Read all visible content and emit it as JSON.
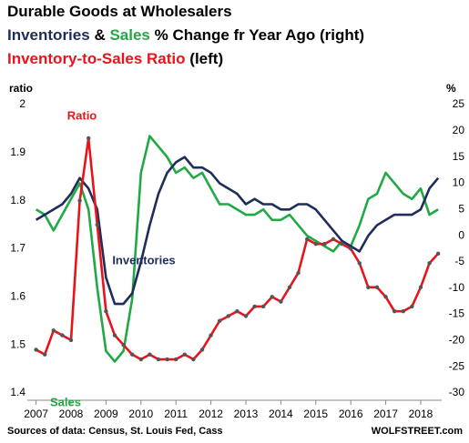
{
  "chart_data": {
    "type": "line",
    "title_lines": [
      [
        {
          "text": "Durable Goods at Wholesalers",
          "color": "#000000"
        }
      ],
      [
        {
          "text": "Inventories",
          "color": "#1f2d5a"
        },
        {
          "text": "&",
          "color": "#000000"
        },
        {
          "text": "Sales",
          "color": "#22a845"
        },
        {
          "text": "% Change fr Year Ago (right)",
          "color": "#000000"
        }
      ],
      [
        {
          "text": "Inventory-to-Sales  Ratio",
          "color": "#e8141b"
        },
        {
          "text": "(left)",
          "color": "#000000"
        }
      ]
    ],
    "ylabel": "ratio",
    "y2label": "%",
    "x": [
      2007,
      2007.25,
      2007.5,
      2007.75,
      2008,
      2008.25,
      2008.5,
      2008.75,
      2009,
      2009.25,
      2009.5,
      2009.75,
      2010,
      2010.25,
      2010.5,
      2010.75,
      2011,
      2011.25,
      2011.5,
      2011.75,
      2012,
      2012.25,
      2012.5,
      2012.75,
      2013,
      2013.25,
      2013.5,
      2013.75,
      2014,
      2014.25,
      2014.5,
      2014.75,
      2015,
      2015.25,
      2015.5,
      2015.75,
      2016,
      2016.25,
      2016.5,
      2016.75,
      2017,
      2017.25,
      2017.5,
      2017.75,
      2018,
      2018.25,
      2018.5
    ],
    "series": [
      {
        "name": "Sales",
        "color": "#22a845",
        "axis": "y2",
        "values": [
          5,
          4,
          1,
          4,
          7,
          10,
          5,
          -10,
          -22,
          -24,
          -22,
          -12,
          12,
          19,
          17,
          15,
          12,
          13,
          11,
          12,
          9,
          6,
          6,
          5,
          4,
          4,
          5,
          3,
          3,
          4,
          2,
          0,
          -1,
          -2,
          -3,
          -1,
          -2,
          2,
          7,
          8,
          12,
          10,
          8,
          7,
          9,
          4,
          5
        ]
      },
      {
        "name": "Inventories",
        "color": "#1f2d5a",
        "axis": "y2",
        "values": [
          3,
          4,
          5,
          6,
          8,
          11,
          9,
          5,
          -8,
          -13,
          -13,
          -11,
          -5,
          2,
          8,
          12,
          14,
          15,
          13,
          13,
          12,
          10,
          9,
          8,
          6,
          7,
          6,
          6,
          5,
          5,
          6,
          6,
          5,
          3,
          1,
          -1,
          -2,
          -3,
          0,
          2,
          3,
          4,
          4,
          4,
          5,
          9,
          11
        ]
      },
      {
        "name": "Ratio",
        "color": "#e8141b",
        "marker_color": "#555555",
        "values": [
          1.49,
          1.48,
          1.53,
          1.52,
          1.51,
          1.8,
          1.93,
          1.75,
          1.57,
          1.52,
          1.5,
          1.48,
          1.47,
          1.48,
          1.47,
          1.47,
          1.47,
          1.48,
          1.47,
          1.49,
          1.52,
          1.55,
          1.56,
          1.57,
          1.56,
          1.58,
          1.58,
          1.6,
          1.59,
          1.62,
          1.65,
          1.72,
          1.71,
          1.71,
          1.72,
          1.71,
          1.7,
          1.67,
          1.62,
          1.62,
          1.6,
          1.57,
          1.57,
          1.58,
          1.62,
          1.67,
          1.69
        ]
      }
    ],
    "xlim": [
      2006.75,
      2018.6
    ],
    "xticks": [
      2007,
      2008,
      2009,
      2010,
      2011,
      2012,
      2013,
      2014,
      2015,
      2016,
      2017,
      2018
    ],
    "ylim": [
      1.4,
      2
    ],
    "yticks": [
      1.4,
      1.5,
      1.6,
      1.7,
      1.8,
      1.9,
      2
    ],
    "y2lim": [
      -30,
      25
    ],
    "y2ticks": [
      -30,
      -25,
      -20,
      -15,
      -10,
      -5,
      0,
      5,
      10,
      15,
      20,
      25
    ],
    "grid": false,
    "footer_left": "Sources of data: Census, St. Louis Fed, Cass",
    "footer_right": "WOLFSTREET.com"
  }
}
